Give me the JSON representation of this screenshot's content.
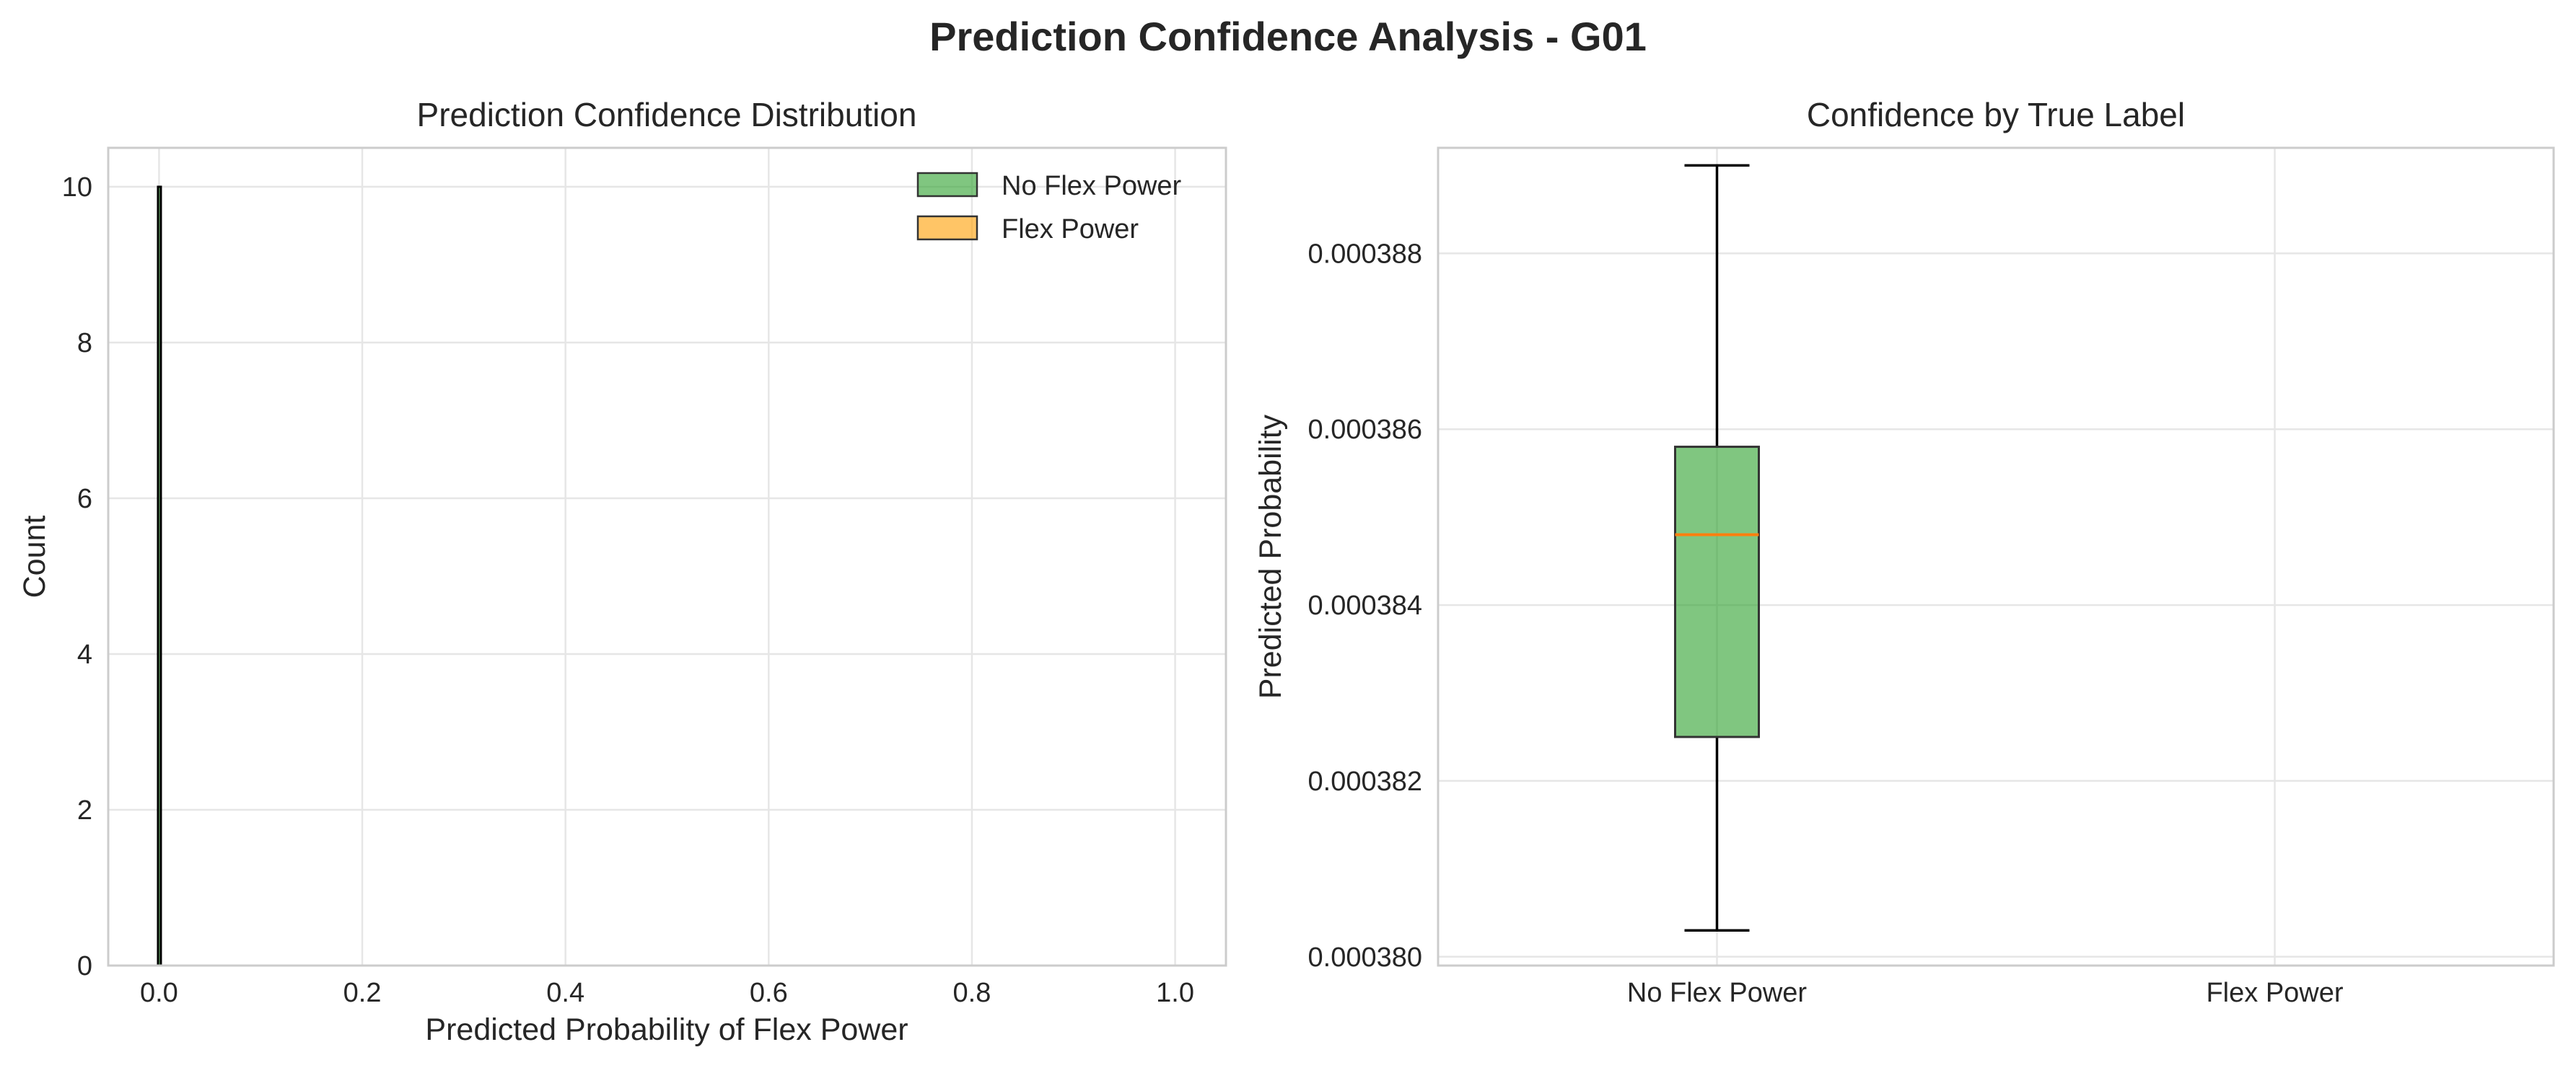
{
  "figure": {
    "suptitle": "Prediction Confidence Analysis - G01"
  },
  "chart_data": [
    {
      "type": "histogram",
      "title": "Prediction Confidence Distribution",
      "xlabel": "Predicted Probability of Flex Power",
      "ylabel": "Count",
      "xlim": [
        -0.05,
        1.05
      ],
      "ylim": [
        0,
        10.5
      ],
      "xticks": [
        "0.0",
        "0.2",
        "0.4",
        "0.6",
        "0.8",
        "1.0"
      ],
      "yticks": [
        "0",
        "2",
        "4",
        "6",
        "8",
        "10"
      ],
      "grid": true,
      "legend": "top-right",
      "series": [
        {
          "name": "No Flex Power",
          "color": "#2ca02c",
          "fill_alpha": 0.6,
          "bins": [
            {
              "x": 0.000385,
              "count": 10
            }
          ]
        },
        {
          "name": "Flex Power",
          "color": "#ff9f00",
          "fill_alpha": 0.6,
          "bins": []
        }
      ]
    },
    {
      "type": "box",
      "title": "Confidence by True Label",
      "xlabel": "",
      "ylabel": "Predicted Probability",
      "categories": [
        "No Flex Power",
        "Flex Power"
      ],
      "ylim": [
        0.0003799,
        0.0003892
      ],
      "yticks": [
        "0.000380",
        "0.000382",
        "0.000384",
        "0.000386",
        "0.000388"
      ],
      "grid": true,
      "boxes": [
        {
          "category": "No Flex Power",
          "whisker_low": 0.0003803,
          "q1": 0.0003825,
          "median": 0.0003848,
          "q3": 0.0003858,
          "whisker_high": 0.000389,
          "color": "#2ca02c",
          "median_color": "#ff7f0e"
        }
      ]
    }
  ]
}
